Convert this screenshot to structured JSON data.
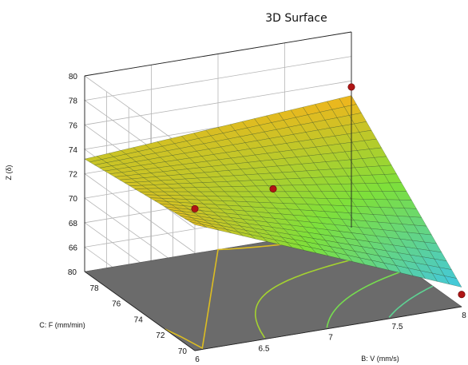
{
  "chart_data": {
    "type": "surface3d",
    "title": "3D Surface",
    "xlabel": "B: V (mm/s)",
    "ylabel": "C: F (mm/min)",
    "zlabel": "Z (δ)",
    "xlim": [
      6,
      8
    ],
    "ylim": [
      70,
      80
    ],
    "zlim": [
      64,
      80
    ],
    "x_ticks": [
      6,
      6.5,
      7,
      7.5,
      8
    ],
    "x_tick_labels": [
      "6",
      "6.5",
      "7",
      "7.5",
      "8"
    ],
    "y_ticks": [
      70,
      72,
      74,
      76,
      78,
      80
    ],
    "y_tick_labels": [
      "70",
      "72",
      "74",
      "76",
      "78",
      "80"
    ],
    "z_ticks": [
      66,
      68,
      70,
      72,
      74,
      76,
      78,
      80
    ],
    "z_tick_labels": [
      "66",
      "68",
      "70",
      "72",
      "74",
      "76",
      "78",
      "80"
    ],
    "surface_corners": [
      {
        "x": 6,
        "y": 70,
        "z": 74.3
      },
      {
        "x": 8,
        "y": 70,
        "z": 65.6
      },
      {
        "x": 6,
        "y": 80,
        "z": 73.2
      },
      {
        "x": 8,
        "y": 80,
        "z": 74.8
      }
    ],
    "design_points": [
      {
        "x": 6,
        "y": 70,
        "z": 75.6
      },
      {
        "x": 8,
        "y": 70,
        "z": 65.0
      },
      {
        "x": 8,
        "y": 80,
        "z": 75.5
      },
      {
        "x": 7,
        "y": 75,
        "z": 72.2
      }
    ],
    "grid": true,
    "contour_levels": [
      68,
      70,
      72,
      74
    ],
    "colors": {
      "low": "#3fc6e8",
      "mid": "#7ee03a",
      "high": "#f2b51c",
      "floor": "#6b6b6b",
      "points": "#b01515"
    }
  }
}
